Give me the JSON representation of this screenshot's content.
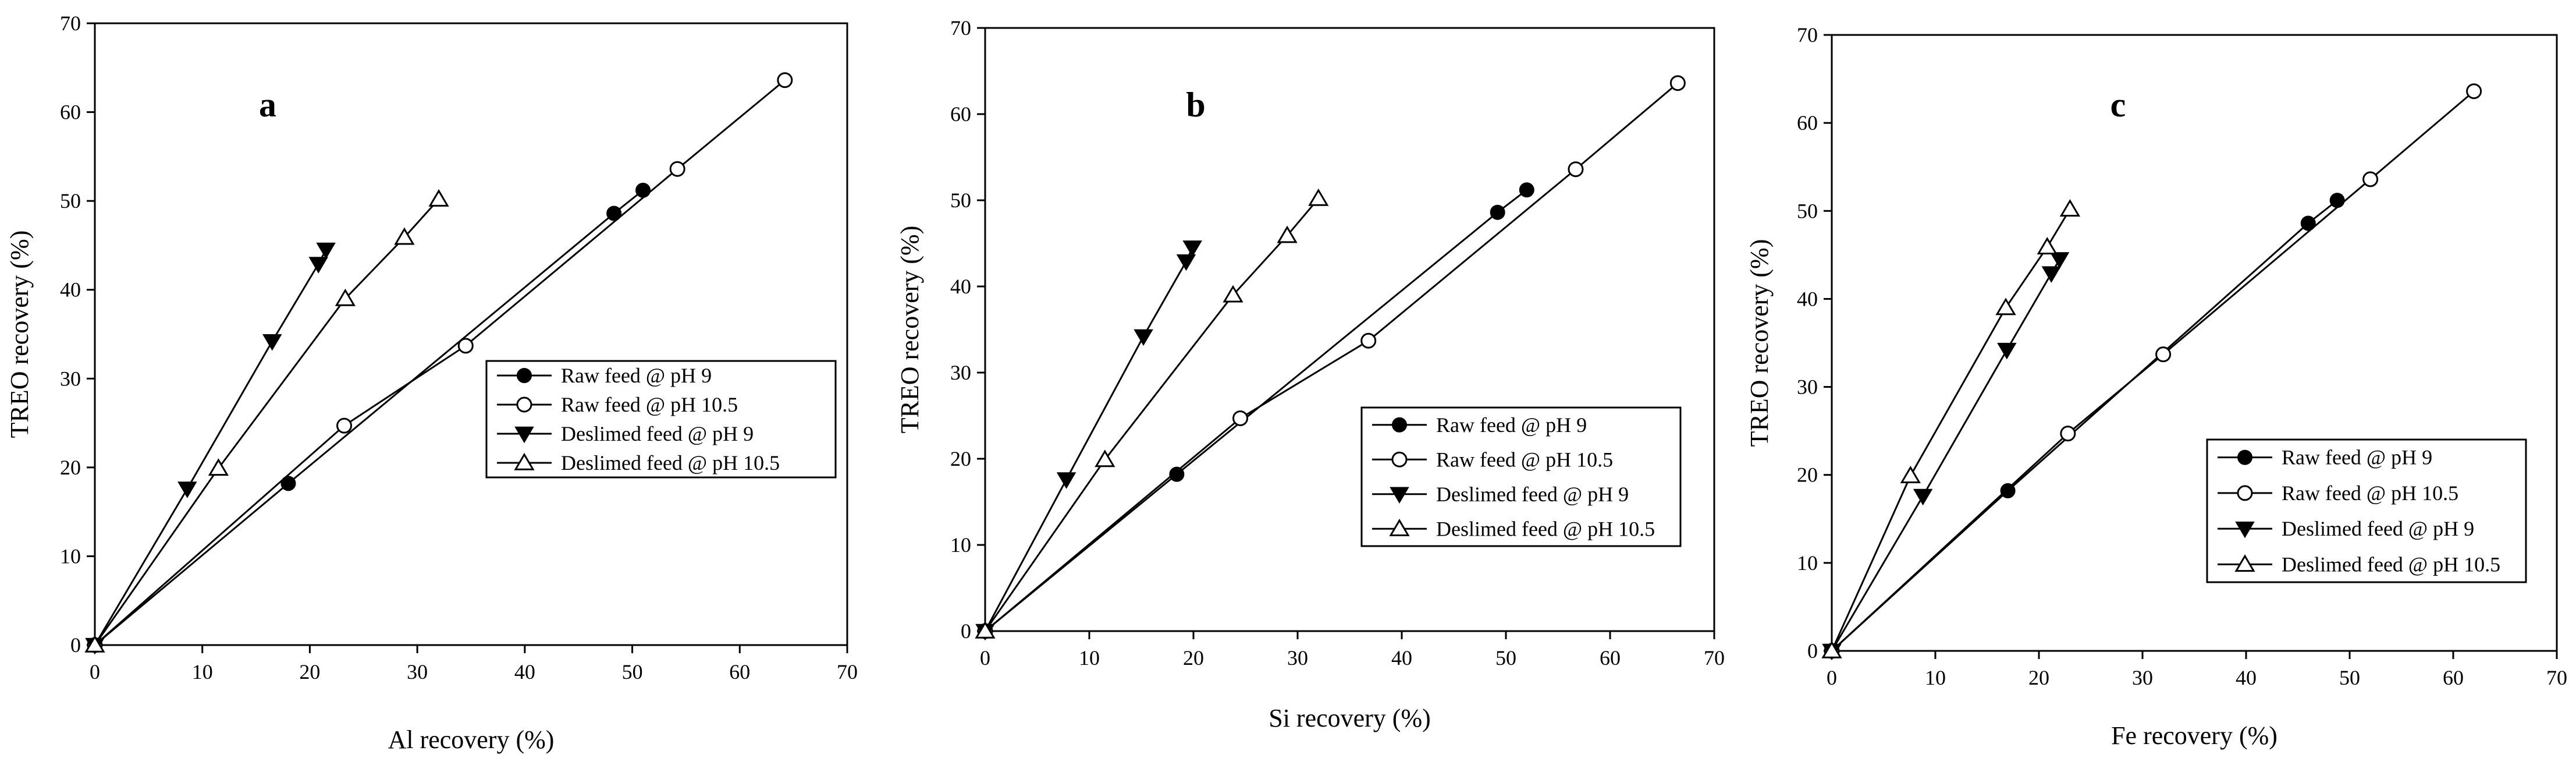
{
  "colors": {
    "ink": "#000000",
    "paper": "#ffffff"
  },
  "legend_labels": [
    "Raw feed @ pH 9",
    "Raw feed @ pH 10.5",
    "Deslimed feed @ pH 9",
    "Deslimed feed @ pH 10.5"
  ],
  "chart_data": [
    {
      "type": "line",
      "panel": "a",
      "xlabel": "Al recovery (%)",
      "ylabel": "TREO recovery (%)",
      "xlim": [
        0,
        70
      ],
      "ylim": [
        0,
        70
      ],
      "xticks": [
        0,
        10,
        20,
        30,
        40,
        50,
        60,
        70
      ],
      "yticks": [
        0,
        10,
        20,
        30,
        40,
        50,
        60,
        70
      ],
      "legend_position": "middle-right",
      "series": [
        {
          "name": "Raw feed @ pH 9",
          "marker": "filled-circle",
          "x": [
            0,
            18.0,
            48.3,
            51.0
          ],
          "y": [
            0,
            18.2,
            48.6,
            51.2
          ]
        },
        {
          "name": "Raw feed @ pH 10.5",
          "marker": "open-circle",
          "x": [
            0,
            23.2,
            34.5,
            54.2,
            64.2
          ],
          "y": [
            0,
            24.7,
            33.7,
            53.6,
            63.6
          ]
        },
        {
          "name": "Deslimed feed @ pH 9",
          "marker": "filled-triangle-down",
          "x": [
            0,
            8.6,
            16.5,
            20.8,
            21.5
          ],
          "y": [
            0,
            17.6,
            34.2,
            42.9,
            44.5
          ]
        },
        {
          "name": "Deslimed feed @ pH 10.5",
          "marker": "open-triangle-up",
          "x": [
            0,
            11.5,
            23.3,
            28.8,
            32.0
          ],
          "y": [
            0,
            19.9,
            39.0,
            45.9,
            50.2
          ]
        }
      ]
    },
    {
      "type": "line",
      "panel": "b",
      "xlabel": "Si recovery (%)",
      "ylabel": "TREO recovery (%)",
      "xlim": [
        0,
        70
      ],
      "ylim": [
        0,
        70
      ],
      "xticks": [
        0,
        10,
        20,
        30,
        40,
        50,
        60,
        70
      ],
      "yticks": [
        0,
        10,
        20,
        30,
        40,
        50,
        60,
        70
      ],
      "legend_position": "middle-right",
      "series": [
        {
          "name": "Raw feed @ pH 9",
          "marker": "filled-circle",
          "x": [
            0,
            18.4,
            49.2,
            52.0
          ],
          "y": [
            0,
            18.2,
            48.6,
            51.2
          ]
        },
        {
          "name": "Raw feed @ pH 10.5",
          "marker": "open-circle",
          "x": [
            0,
            24.5,
            36.8,
            56.7,
            66.5
          ],
          "y": [
            0,
            24.7,
            33.7,
            53.6,
            63.6
          ]
        },
        {
          "name": "Deslimed feed @ pH 9",
          "marker": "filled-triangle-down",
          "x": [
            0,
            7.8,
            15.2,
            19.3,
            19.9
          ],
          "y": [
            0,
            17.6,
            34.2,
            42.9,
            44.5
          ]
        },
        {
          "name": "Deslimed feed @ pH 10.5",
          "marker": "open-triangle-up",
          "x": [
            0,
            11.5,
            23.8,
            29.0,
            32.0
          ],
          "y": [
            0,
            19.9,
            39.0,
            45.9,
            50.2
          ]
        }
      ]
    },
    {
      "type": "line",
      "panel": "c",
      "xlabel": "Fe recovery (%)",
      "ylabel": "TREO recovery (%)",
      "xlim": [
        0,
        70
      ],
      "ylim": [
        0,
        70
      ],
      "xticks": [
        0,
        10,
        20,
        30,
        40,
        50,
        60,
        70
      ],
      "yticks": [
        0,
        10,
        20,
        30,
        40,
        50,
        60,
        70
      ],
      "legend_position": "bottom-right",
      "series": [
        {
          "name": "Raw feed @ pH 9",
          "marker": "filled-circle",
          "x": [
            0,
            17.0,
            46.0,
            48.8
          ],
          "y": [
            0,
            18.2,
            48.6,
            51.2
          ]
        },
        {
          "name": "Raw feed @ pH 10.5",
          "marker": "open-circle",
          "x": [
            0,
            22.8,
            32.0,
            52.0,
            62.0
          ],
          "y": [
            0,
            24.7,
            33.7,
            53.6,
            63.6
          ]
        },
        {
          "name": "Deslimed feed @ pH 9",
          "marker": "filled-triangle-down",
          "x": [
            0,
            8.8,
            16.9,
            21.2,
            22.0
          ],
          "y": [
            0,
            17.6,
            34.2,
            42.9,
            44.5
          ]
        },
        {
          "name": "Deslimed feed @ pH 10.5",
          "marker": "open-triangle-up",
          "x": [
            0,
            7.6,
            16.8,
            20.8,
            23.0
          ],
          "y": [
            0,
            19.9,
            39.0,
            45.9,
            50.2
          ]
        }
      ]
    }
  ]
}
